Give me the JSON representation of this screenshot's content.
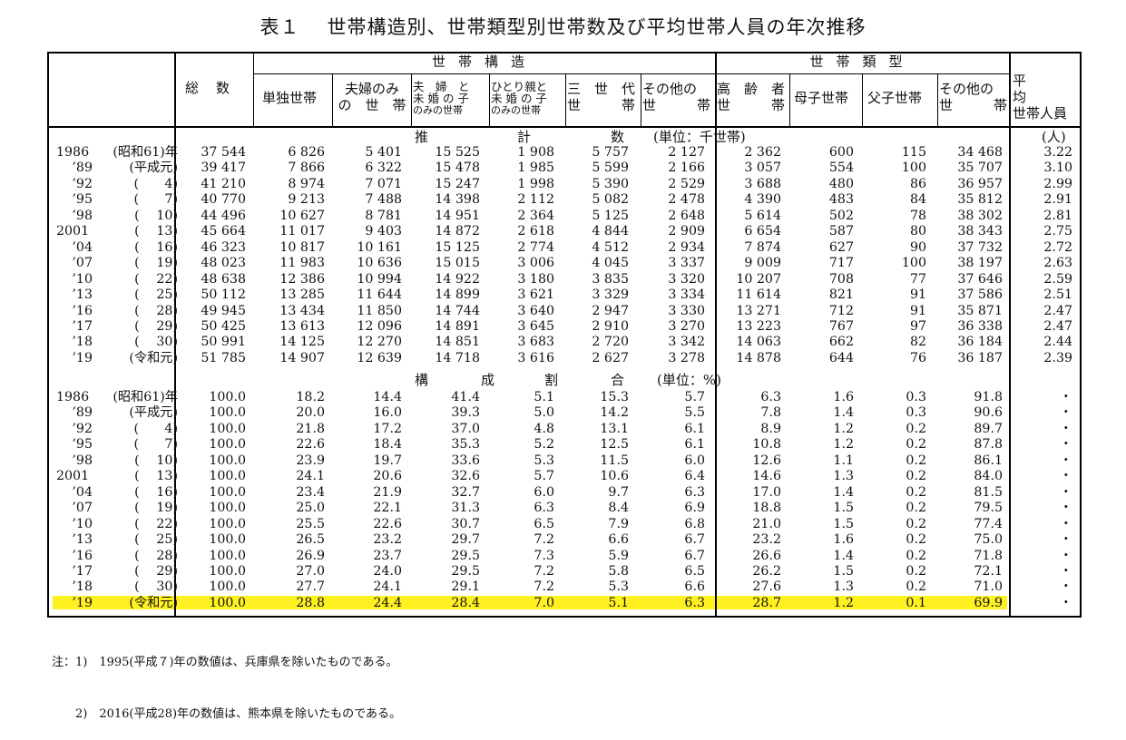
{
  "title": {
    "number": "表１",
    "text": "世帯構造別、世帯類型別世帯数及び平均世帯人員の年次推移"
  },
  "headers": {
    "total": "総　数",
    "group_structure": "世帯構造",
    "group_type": "世帯類型",
    "single": "単独世帯",
    "couple_l1": "夫婦のみ",
    "couple_l2": "の　世　帯",
    "couple_child_l1": "夫　婦　と",
    "couple_child_l2": "未 婚 の 子",
    "couple_child_l3": "のみの世帯",
    "single_parent_l1": "ひとり親と",
    "single_parent_l2": "未 婚 の 子",
    "single_parent_l3": "のみの世帯",
    "three_gen_l1": "三　世　代",
    "three_gen_l2": "世　　　帯",
    "other_struct_l1": "その他の",
    "other_struct_l2": "世　　　帯",
    "elderly_l1": "高　齢　者",
    "elderly_l2": "世　　　帯",
    "mother_child": "母子世帯",
    "father_child": "父子世帯",
    "other_type_l1": "その他の",
    "other_type_l2": "世　　　帯",
    "avg_l1": "平　　　均",
    "avg_l2": "世帯人員"
  },
  "section1": {
    "w1": "推",
    "w2": "計",
    "w3": "数",
    "unit": "(単位：千世帯)",
    "avg_unit": "(人)"
  },
  "section2": {
    "w1": "構",
    "w2": "成",
    "w3": "割",
    "w4": "合",
    "unit": "(単位：%)"
  },
  "counts": [
    [
      "1986",
      "(昭和61)年",
      "37 544",
      "6 826",
      "5 401",
      "15 525",
      "1 908",
      "5 757",
      "2 127",
      "2 362",
      "600",
      "115",
      "34 468",
      "3.22"
    ],
    [
      "’89",
      "(平成元)",
      "39 417",
      "7 866",
      "6 322",
      "15 478",
      "1 985",
      "5 599",
      "2 166",
      "3 057",
      "554",
      "100",
      "35 707",
      "3.10"
    ],
    [
      "’92",
      "(　　4)",
      "41 210",
      "8 974",
      "7 071",
      "15 247",
      "1 998",
      "5 390",
      "2 529",
      "3 688",
      "480",
      "86",
      "36 957",
      "2.99"
    ],
    [
      "’95",
      "(　　7)",
      "40 770",
      "9 213",
      "7 488",
      "14 398",
      "2 112",
      "5 082",
      "2 478",
      "4 390",
      "483",
      "84",
      "35 812",
      "2.91"
    ],
    [
      "’98",
      "(　 10)",
      "44 496",
      "10 627",
      "8 781",
      "14 951",
      "2 364",
      "5 125",
      "2 648",
      "5 614",
      "502",
      "78",
      "38 302",
      "2.81"
    ],
    [
      "2001",
      "(　 13)",
      "45 664",
      "11 017",
      "9 403",
      "14 872",
      "2 618",
      "4 844",
      "2 909",
      "6 654",
      "587",
      "80",
      "38 343",
      "2.75"
    ],
    [
      "’04",
      "(　 16)",
      "46 323",
      "10 817",
      "10 161",
      "15 125",
      "2 774",
      "4 512",
      "2 934",
      "7 874",
      "627",
      "90",
      "37 732",
      "2.72"
    ],
    [
      "’07",
      "(　 19)",
      "48 023",
      "11 983",
      "10 636",
      "15 015",
      "3 006",
      "4 045",
      "3 337",
      "9 009",
      "717",
      "100",
      "38 197",
      "2.63"
    ],
    [
      "’10",
      "(　 22)",
      "48 638",
      "12 386",
      "10 994",
      "14 922",
      "3 180",
      "3 835",
      "3 320",
      "10 207",
      "708",
      "77",
      "37 646",
      "2.59"
    ],
    [
      "’13",
      "(　 25)",
      "50 112",
      "13 285",
      "11 644",
      "14 899",
      "3 621",
      "3 329",
      "3 334",
      "11 614",
      "821",
      "91",
      "37 586",
      "2.51"
    ],
    [
      "’16",
      "(　 28)",
      "49 945",
      "13 434",
      "11 850",
      "14 744",
      "3 640",
      "2 947",
      "3 330",
      "13 271",
      "712",
      "91",
      "35 871",
      "2.47"
    ],
    [
      "’17",
      "(　 29)",
      "50 425",
      "13 613",
      "12 096",
      "14 891",
      "3 645",
      "2 910",
      "3 270",
      "13 223",
      "767",
      "97",
      "36 338",
      "2.47"
    ],
    [
      "’18",
      "(　 30)",
      "50 991",
      "14 125",
      "12 270",
      "14 851",
      "3 683",
      "2 720",
      "3 342",
      "14 063",
      "662",
      "82",
      "36 184",
      "2.44"
    ],
    [
      "’19",
      "(令和元)",
      "51 785",
      "14 907",
      "12 639",
      "14 718",
      "3 616",
      "2 627",
      "3 278",
      "14 878",
      "644",
      "76",
      "36 187",
      "2.39"
    ]
  ],
  "ratios": [
    [
      "1986",
      "(昭和61)年",
      "100.0",
      "18.2",
      "14.4",
      "41.4",
      "5.1",
      "15.3",
      "5.7",
      "6.3",
      "1.6",
      "0.3",
      "91.8",
      "・"
    ],
    [
      "’89",
      "(平成元)",
      "100.0",
      "20.0",
      "16.0",
      "39.3",
      "5.0",
      "14.2",
      "5.5",
      "7.8",
      "1.4",
      "0.3",
      "90.6",
      "・"
    ],
    [
      "’92",
      "(　　4)",
      "100.0",
      "21.8",
      "17.2",
      "37.0",
      "4.8",
      "13.1",
      "6.1",
      "8.9",
      "1.2",
      "0.2",
      "89.7",
      "・"
    ],
    [
      "’95",
      "(　　7)",
      "100.0",
      "22.6",
      "18.4",
      "35.3",
      "5.2",
      "12.5",
      "6.1",
      "10.8",
      "1.2",
      "0.2",
      "87.8",
      "・"
    ],
    [
      "’98",
      "(　 10)",
      "100.0",
      "23.9",
      "19.7",
      "33.6",
      "5.3",
      "11.5",
      "6.0",
      "12.6",
      "1.1",
      "0.2",
      "86.1",
      "・"
    ],
    [
      "2001",
      "(　 13)",
      "100.0",
      "24.1",
      "20.6",
      "32.6",
      "5.7",
      "10.6",
      "6.4",
      "14.6",
      "1.3",
      "0.2",
      "84.0",
      "・"
    ],
    [
      "’04",
      "(　 16)",
      "100.0",
      "23.4",
      "21.9",
      "32.7",
      "6.0",
      "9.7",
      "6.3",
      "17.0",
      "1.4",
      "0.2",
      "81.5",
      "・"
    ],
    [
      "’07",
      "(　 19)",
      "100.0",
      "25.0",
      "22.1",
      "31.3",
      "6.3",
      "8.4",
      "6.9",
      "18.8",
      "1.5",
      "0.2",
      "79.5",
      "・"
    ],
    [
      "’10",
      "(　 22)",
      "100.0",
      "25.5",
      "22.6",
      "30.7",
      "6.5",
      "7.9",
      "6.8",
      "21.0",
      "1.5",
      "0.2",
      "77.4",
      "・"
    ],
    [
      "’13",
      "(　 25)",
      "100.0",
      "26.5",
      "23.2",
      "29.7",
      "7.2",
      "6.6",
      "6.7",
      "23.2",
      "1.6",
      "0.2",
      "75.0",
      "・"
    ],
    [
      "’16",
      "(　 28)",
      "100.0",
      "26.9",
      "23.7",
      "29.5",
      "7.3",
      "5.9",
      "6.7",
      "26.6",
      "1.4",
      "0.2",
      "71.8",
      "・"
    ],
    [
      "’17",
      "(　 29)",
      "100.0",
      "27.0",
      "24.0",
      "29.5",
      "7.2",
      "5.8",
      "6.5",
      "26.2",
      "1.5",
      "0.2",
      "72.1",
      "・"
    ],
    [
      "’18",
      "(　 30)",
      "100.0",
      "27.7",
      "24.1",
      "29.1",
      "7.2",
      "5.3",
      "6.6",
      "27.6",
      "1.3",
      "0.2",
      "71.0",
      "・"
    ],
    [
      "’19",
      "(令和元)",
      "100.0",
      "28.8",
      "24.4",
      "28.4",
      "7.0",
      "5.1",
      "6.3",
      "28.7",
      "1.2",
      "0.1",
      "69.9",
      "・"
    ]
  ],
  "notes": {
    "n1": "注：1)　1995(平成７)年の数値は、兵庫県を除いたものである。",
    "n2": "　　2)　2016(平成28)年の数値は、熊本県を除いたものである。"
  },
  "colors": {
    "highlight": "#fff021",
    "border": "#000000"
  }
}
